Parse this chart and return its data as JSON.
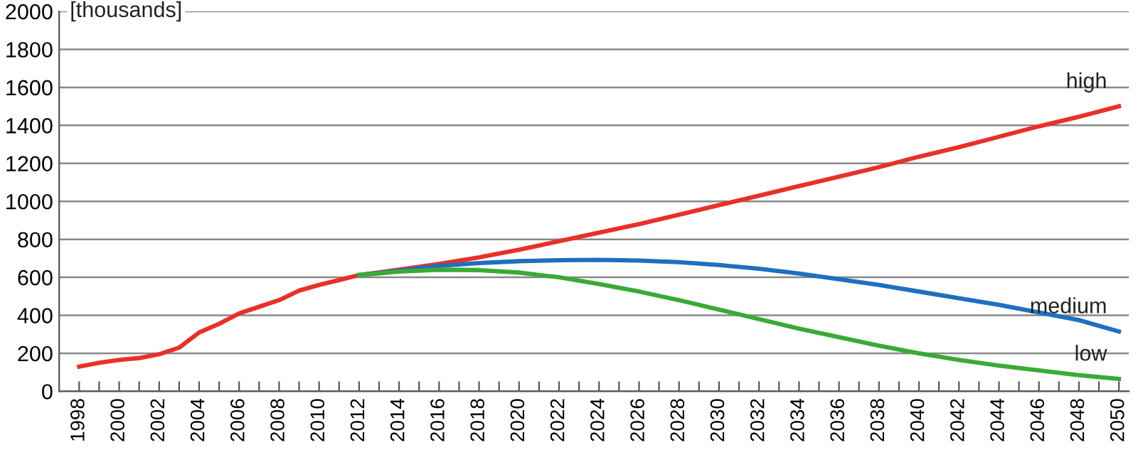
{
  "chart_data": {
    "type": "line",
    "ylabel": "[thousands]",
    "xlim": [
      1997,
      2050.5
    ],
    "ylim": [
      0,
      2000
    ],
    "xticks": [
      1998,
      {
        "value": 1999,
        "label": null
      },
      2000,
      {
        "value": 2001,
        "label": null
      },
      2002,
      {
        "value": 2003,
        "label": null
      },
      2004,
      {
        "value": 2005,
        "label": null
      },
      2006,
      {
        "value": 2007,
        "label": null
      },
      2008,
      {
        "value": 2009,
        "label": null
      },
      2010,
      {
        "value": 2011,
        "label": null
      },
      2012,
      {
        "value": 2013,
        "label": null
      },
      2014,
      {
        "value": 2015,
        "label": null
      },
      2016,
      {
        "value": 2017,
        "label": null
      },
      2018,
      {
        "value": 2019,
        "label": null
      },
      2020,
      {
        "value": 2021,
        "label": null
      },
      2022,
      {
        "value": 2023,
        "label": null
      },
      2024,
      {
        "value": 2025,
        "label": null
      },
      2026,
      {
        "value": 2027,
        "label": null
      },
      2028,
      {
        "value": 2029,
        "label": null
      },
      2030,
      {
        "value": 2031,
        "label": null
      },
      2032,
      {
        "value": 2033,
        "label": null
      },
      2034,
      {
        "value": 2035,
        "label": null
      },
      2036,
      {
        "value": 2037,
        "label": null
      },
      2038,
      {
        "value": 2039,
        "label": null
      },
      2040,
      {
        "value": 2041,
        "label": null
      },
      2042,
      {
        "value": 2043,
        "label": null
      },
      2044,
      {
        "value": 2045,
        "label": null
      },
      2046,
      {
        "value": 2047,
        "label": null
      },
      2048,
      {
        "value": 2049,
        "label": null
      },
      2050
    ],
    "yticks": [
      0,
      200,
      400,
      600,
      800,
      1000,
      1200,
      1400,
      1600,
      1800,
      2000
    ],
    "grid": "y",
    "legend": false,
    "marker": "none",
    "line_style": "solid",
    "series": [
      {
        "name": "high",
        "color": "#e8302a",
        "x": [
          1998,
          1999,
          2000,
          2001,
          2002,
          2003,
          2004,
          2005,
          2006,
          2007,
          2008,
          2009,
          2010,
          2011,
          2012,
          2013,
          2014,
          2016,
          2018,
          2020,
          2022,
          2024,
          2026,
          2028,
          2030,
          2032,
          2034,
          2036,
          2038,
          2040,
          2042,
          2044,
          2046,
          2048,
          2050
        ],
        "values": [
          130,
          150,
          165,
          175,
          195,
          230,
          310,
          355,
          410,
          445,
          480,
          530,
          560,
          585,
          612,
          625,
          640,
          670,
          705,
          745,
          790,
          835,
          880,
          930,
          980,
          1030,
          1080,
          1130,
          1180,
          1235,
          1285,
          1340,
          1395,
          1445,
          1500
        ]
      },
      {
        "name": "medium",
        "color": "#1f6fbf",
        "x": [
          2012,
          2014,
          2016,
          2018,
          2020,
          2022,
          2024,
          2026,
          2028,
          2030,
          2032,
          2034,
          2036,
          2038,
          2040,
          2042,
          2044,
          2046,
          2048,
          2050
        ],
        "values": [
          612,
          635,
          660,
          675,
          685,
          690,
          692,
          688,
          680,
          665,
          645,
          620,
          590,
          560,
          525,
          490,
          455,
          415,
          375,
          315
        ]
      },
      {
        "name": "low",
        "color": "#3aaa35",
        "x": [
          2012,
          2014,
          2016,
          2018,
          2020,
          2022,
          2024,
          2026,
          2028,
          2030,
          2032,
          2034,
          2036,
          2038,
          2040,
          2042,
          2044,
          2046,
          2048,
          2050
        ],
        "values": [
          612,
          630,
          640,
          638,
          625,
          600,
          565,
          525,
          480,
          430,
          380,
          330,
          285,
          240,
          200,
          165,
          135,
          110,
          85,
          65
        ]
      }
    ]
  }
}
